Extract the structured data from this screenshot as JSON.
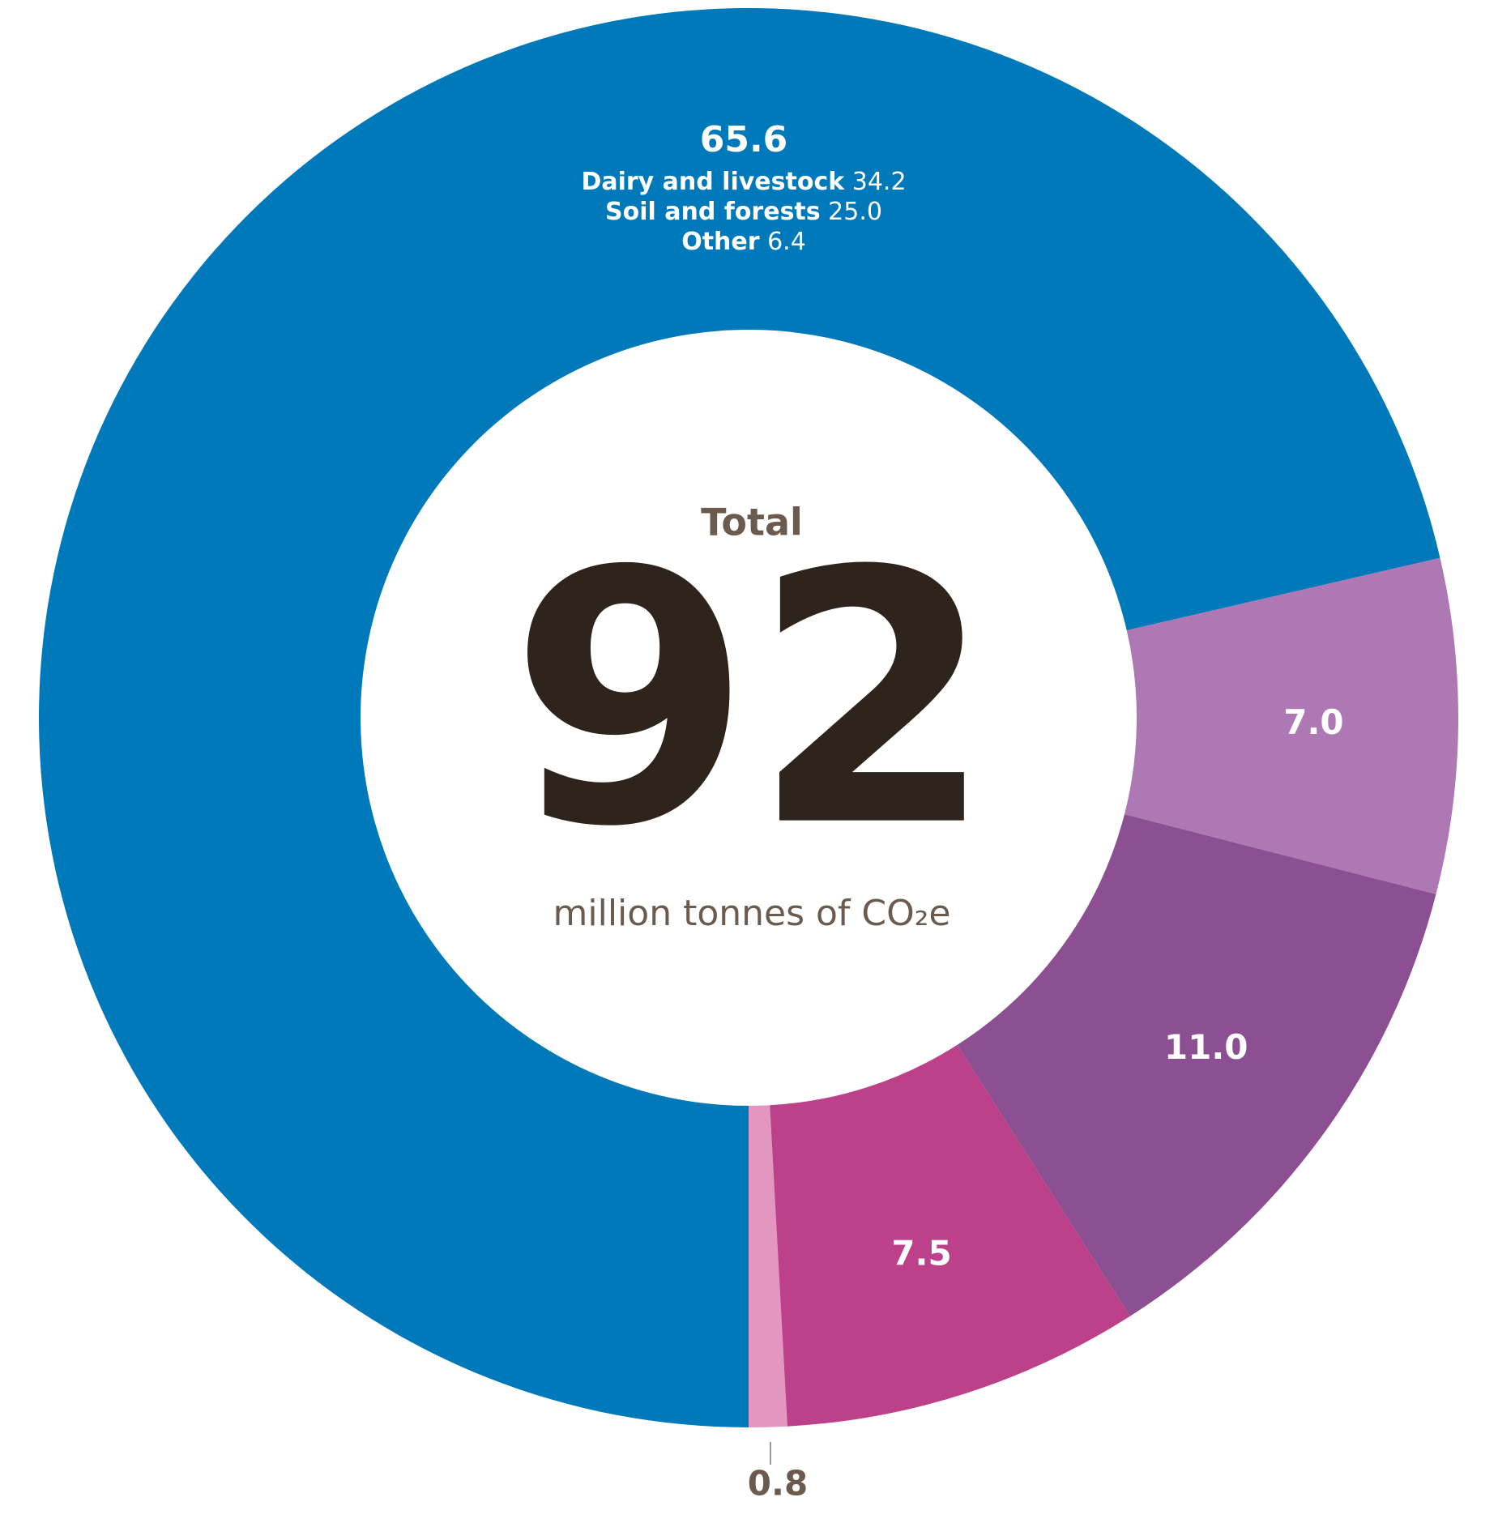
{
  "chart_data": {
    "type": "donut",
    "values": [
      65.6,
      7.0,
      11.0,
      7.5,
      0.8
    ],
    "value_labels": [
      "65.6",
      "7.0",
      "11.0",
      "7.5",
      "0.8"
    ],
    "colors": [
      "#0079bb",
      "#ad78b4",
      "#8b4f92",
      "#bd418a",
      "#e296c0"
    ],
    "breakdown": [
      {
        "name": "Dairy and livestock",
        "value": 34.2,
        "label": "34.2"
      },
      {
        "name": "Soil and forests",
        "value": 25.0,
        "label": "25.0"
      },
      {
        "name": "Other",
        "value": 6.4,
        "label": "6.4"
      }
    ],
    "center": {
      "title": "Total",
      "value": 92,
      "unit": "million tonnes of CO₂e"
    }
  }
}
